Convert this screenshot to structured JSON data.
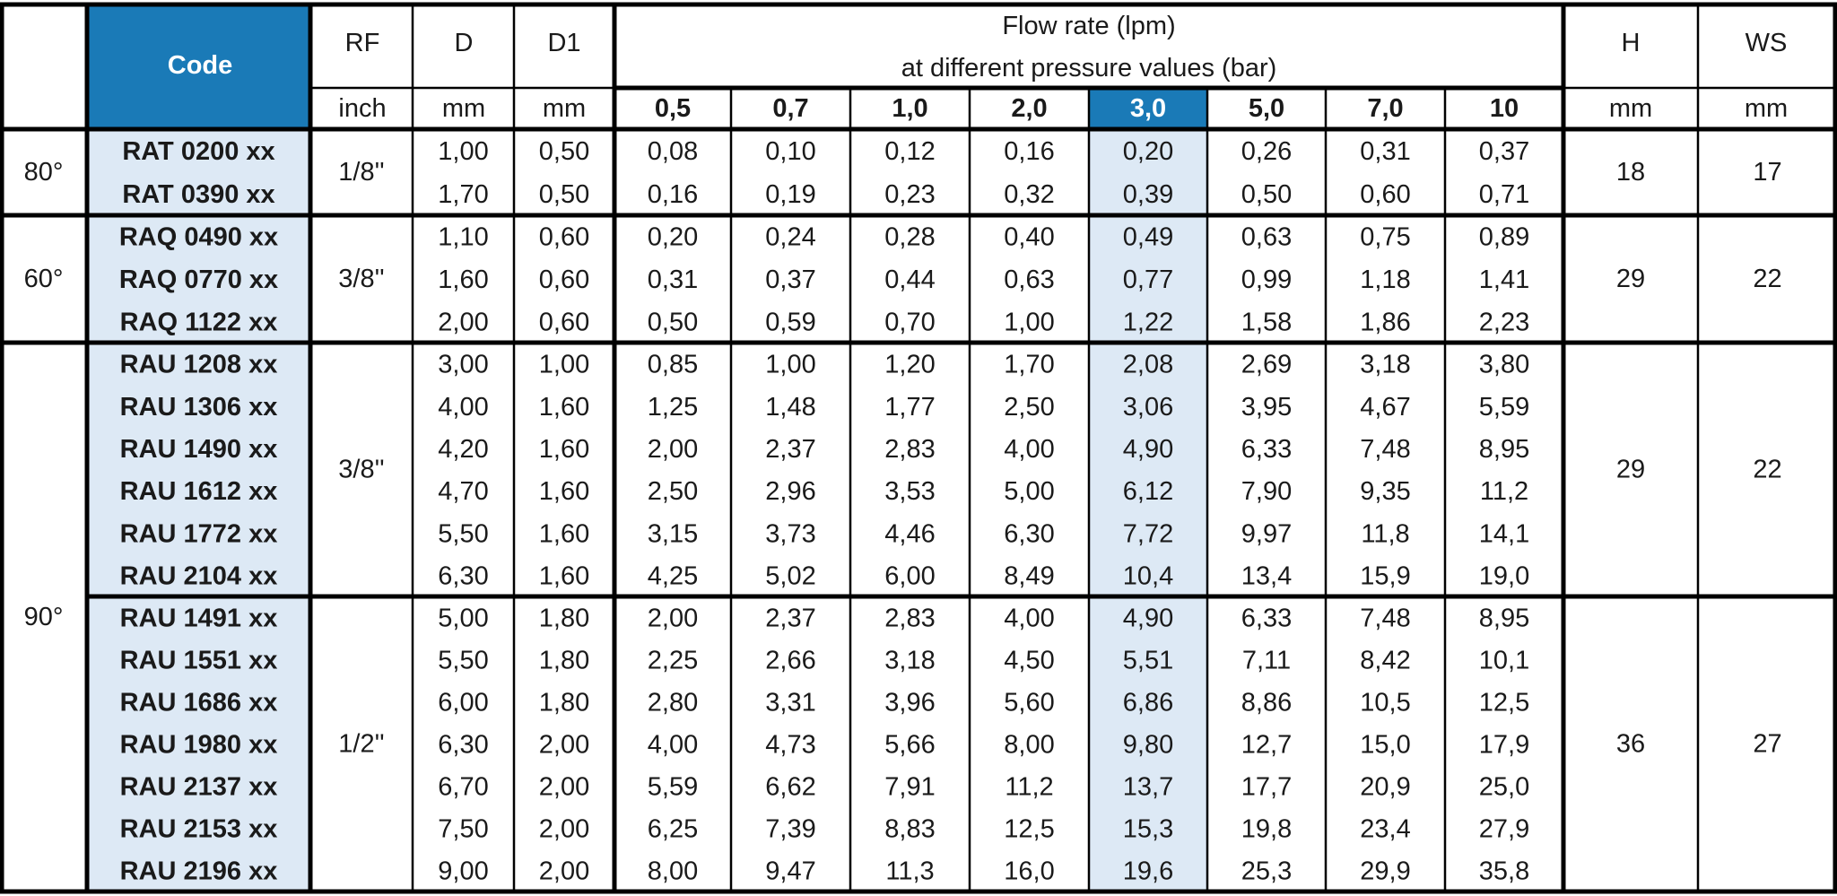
{
  "colors": {
    "accent_blue": "#1a7ab7",
    "light_blue": "#dde9f5",
    "border": "#000000",
    "text": "#1a1a1a"
  },
  "header": {
    "code": "Code",
    "rf": "RF",
    "d": "D",
    "d1": "D1",
    "flow_title": "Flow rate (lpm)",
    "flow_subtitle": "at different pressure values (bar)",
    "h": "H",
    "ws": "WS",
    "units": {
      "rf": "inch",
      "d": "mm",
      "d1": "mm",
      "h": "mm",
      "ws": "mm"
    },
    "pressures": [
      "0,5",
      "0,7",
      "1,0",
      "2,0",
      "3,0",
      "5,0",
      "7,0",
      "10"
    ],
    "highlight_pressure_index": 4
  },
  "groups": [
    {
      "angle": "80°",
      "rf": "1/8''",
      "h": "18",
      "ws": "17",
      "rows": [
        {
          "code": "RAT 0200 xx",
          "d": "1,00",
          "d1": "0,50",
          "flow": [
            "0,08",
            "0,10",
            "0,12",
            "0,16",
            "0,20",
            "0,26",
            "0,31",
            "0,37"
          ]
        },
        {
          "code": "RAT 0390 xx",
          "d": "1,70",
          "d1": "0,50",
          "flow": [
            "0,16",
            "0,19",
            "0,23",
            "0,32",
            "0,39",
            "0,50",
            "0,60",
            "0,71"
          ]
        }
      ]
    },
    {
      "angle": "60°",
      "rf": "3/8''",
      "h": "29",
      "ws": "22",
      "rows": [
        {
          "code": "RAQ 0490 xx",
          "d": "1,10",
          "d1": "0,60",
          "flow": [
            "0,20",
            "0,24",
            "0,28",
            "0,40",
            "0,49",
            "0,63",
            "0,75",
            "0,89"
          ]
        },
        {
          "code": "RAQ 0770 xx",
          "d": "1,60",
          "d1": "0,60",
          "flow": [
            "0,31",
            "0,37",
            "0,44",
            "0,63",
            "0,77",
            "0,99",
            "1,18",
            "1,41"
          ]
        },
        {
          "code": "RAQ 1122 xx",
          "d": "2,00",
          "d1": "0,60",
          "flow": [
            "0,50",
            "0,59",
            "0,70",
            "1,00",
            "1,22",
            "1,58",
            "1,86",
            "2,23"
          ]
        }
      ]
    },
    {
      "angle": "90°",
      "rf": "3/8''",
      "h": "29",
      "ws": "22",
      "rows": [
        {
          "code": "RAU 1208 xx",
          "d": "3,00",
          "d1": "1,00",
          "flow": [
            "0,85",
            "1,00",
            "1,20",
            "1,70",
            "2,08",
            "2,69",
            "3,18",
            "3,80"
          ]
        },
        {
          "code": "RAU 1306 xx",
          "d": "4,00",
          "d1": "1,60",
          "flow": [
            "1,25",
            "1,48",
            "1,77",
            "2,50",
            "3,06",
            "3,95",
            "4,67",
            "5,59"
          ]
        },
        {
          "code": "RAU 1490 xx",
          "d": "4,20",
          "d1": "1,60",
          "flow": [
            "2,00",
            "2,37",
            "2,83",
            "4,00",
            "4,90",
            "6,33",
            "7,48",
            "8,95"
          ]
        },
        {
          "code": "RAU 1612 xx",
          "d": "4,70",
          "d1": "1,60",
          "flow": [
            "2,50",
            "2,96",
            "3,53",
            "5,00",
            "6,12",
            "7,90",
            "9,35",
            "11,2"
          ]
        },
        {
          "code": "RAU 1772 xx",
          "d": "5,50",
          "d1": "1,60",
          "flow": [
            "3,15",
            "3,73",
            "4,46",
            "6,30",
            "7,72",
            "9,97",
            "11,8",
            "14,1"
          ]
        },
        {
          "code": "RAU 2104 xx",
          "d": "6,30",
          "d1": "1,60",
          "flow": [
            "4,25",
            "5,02",
            "6,00",
            "8,49",
            "10,4",
            "13,4",
            "15,9",
            "19,0"
          ]
        }
      ]
    },
    {
      "angle": "",
      "rf": "1/2''",
      "h": "36",
      "ws": "27",
      "rows": [
        {
          "code": "RAU 1491 xx",
          "d": "5,00",
          "d1": "1,80",
          "flow": [
            "2,00",
            "2,37",
            "2,83",
            "4,00",
            "4,90",
            "6,33",
            "7,48",
            "8,95"
          ]
        },
        {
          "code": "RAU 1551 xx",
          "d": "5,50",
          "d1": "1,80",
          "flow": [
            "2,25",
            "2,66",
            "3,18",
            "4,50",
            "5,51",
            "7,11",
            "8,42",
            "10,1"
          ]
        },
        {
          "code": "RAU 1686 xx",
          "d": "6,00",
          "d1": "1,80",
          "flow": [
            "2,80",
            "3,31",
            "3,96",
            "5,60",
            "6,86",
            "8,86",
            "10,5",
            "12,5"
          ]
        },
        {
          "code": "RAU 1980 xx",
          "d": "6,30",
          "d1": "2,00",
          "flow": [
            "4,00",
            "4,73",
            "5,66",
            "8,00",
            "9,80",
            "12,7",
            "15,0",
            "17,9"
          ]
        },
        {
          "code": "RAU 2137 xx",
          "d": "6,70",
          "d1": "2,00",
          "flow": [
            "5,59",
            "6,62",
            "7,91",
            "11,2",
            "13,7",
            "17,7",
            "20,9",
            "25,0"
          ]
        },
        {
          "code": "RAU 2153 xx",
          "d": "7,50",
          "d1": "2,00",
          "flow": [
            "6,25",
            "7,39",
            "8,83",
            "12,5",
            "15,3",
            "19,8",
            "23,4",
            "27,9"
          ]
        },
        {
          "code": "RAU 2196 xx",
          "d": "9,00",
          "d1": "2,00",
          "flow": [
            "8,00",
            "9,47",
            "11,3",
            "16,0",
            "19,6",
            "25,3",
            "29,9",
            "35,8"
          ]
        }
      ]
    }
  ]
}
